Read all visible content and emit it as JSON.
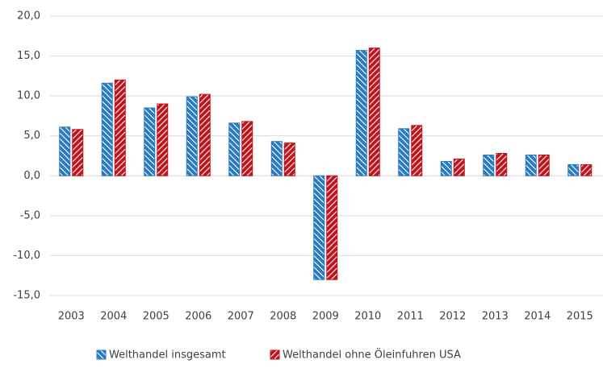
{
  "chart_data": {
    "type": "bar",
    "categories": [
      "2003",
      "2004",
      "2005",
      "2006",
      "2007",
      "2008",
      "2009",
      "2010",
      "2011",
      "2012",
      "2013",
      "2014",
      "2015"
    ],
    "series": [
      {
        "name": "Welthandel insgesamt",
        "color": "#2a7ac0",
        "values": [
          6.1,
          11.6,
          8.5,
          9.9,
          6.6,
          4.3,
          -13.0,
          15.7,
          5.9,
          1.8,
          2.6,
          2.6,
          1.4
        ]
      },
      {
        "name": "Welthandel ohne Öleinfuhren USA",
        "color": "#c0141c",
        "values": [
          5.8,
          12.0,
          9.0,
          10.2,
          6.8,
          4.1,
          -13.0,
          16.0,
          6.3,
          2.1,
          2.8,
          2.6,
          1.4
        ]
      }
    ],
    "ylim": [
      -15,
      20
    ],
    "yticks": [
      {
        "value": -15,
        "label": "-15,0"
      },
      {
        "value": -10,
        "label": "-10,0"
      },
      {
        "value": -5,
        "label": "-5,0"
      },
      {
        "value": 0,
        "label": "0,0"
      },
      {
        "value": 5,
        "label": "5,0"
      },
      {
        "value": 10,
        "label": "10,0"
      },
      {
        "value": 15,
        "label": "15,0"
      },
      {
        "value": 20,
        "label": "20,0"
      }
    ],
    "grid": true
  }
}
